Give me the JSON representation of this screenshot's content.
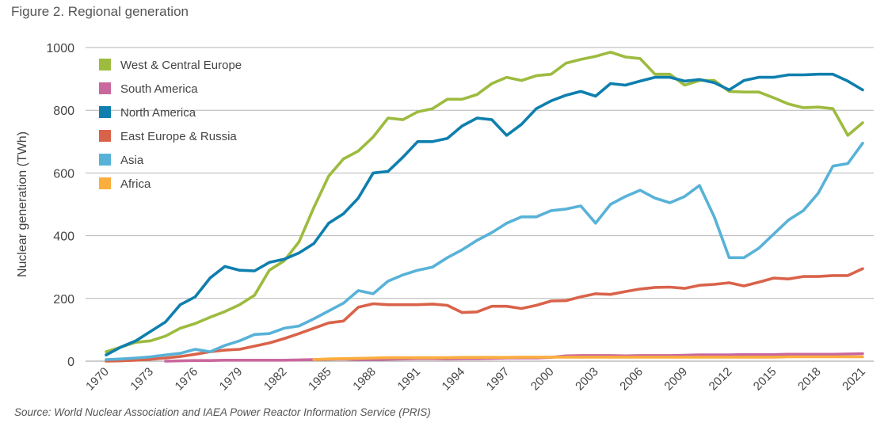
{
  "figure_title": "Figure 2. Regional generation",
  "source": "Source: World Nuclear Association and IAEA Power Reactor Information Service (PRIS)",
  "chart_data": {
    "type": "line",
    "title": "Figure 2. Regional generation",
    "xlabel": "",
    "ylabel": "Nuclear generation (TWh)",
    "xlim": [
      1970,
      2021
    ],
    "ylim": [
      0,
      1000
    ],
    "x_ticks": [
      "1970",
      "1973",
      "1976",
      "1979",
      "1982",
      "1985",
      "1988",
      "1991",
      "1994",
      "1997",
      "2000",
      "2003",
      "2006",
      "2009",
      "2012",
      "2015",
      "2018",
      "2021"
    ],
    "y_ticks": [
      "0",
      "200",
      "400",
      "600",
      "800",
      "1000"
    ],
    "grid": "horizontal",
    "legend_position": "top-left",
    "x": [
      1970,
      1971,
      1972,
      1973,
      1974,
      1975,
      1976,
      1977,
      1978,
      1979,
      1980,
      1981,
      1982,
      1983,
      1984,
      1985,
      1986,
      1987,
      1988,
      1989,
      1990,
      1991,
      1992,
      1993,
      1994,
      1995,
      1996,
      1997,
      1998,
      1999,
      2000,
      2001,
      2002,
      2003,
      2004,
      2005,
      2006,
      2007,
      2008,
      2009,
      2010,
      2011,
      2012,
      2013,
      2014,
      2015,
      2016,
      2017,
      2018,
      2019,
      2020,
      2021
    ],
    "series": [
      {
        "name": "West & Central Europe",
        "color": "#9dbb3f",
        "values": [
          30,
          45,
          60,
          65,
          80,
          105,
          120,
          140,
          158,
          180,
          210,
          290,
          320,
          380,
          490,
          590,
          645,
          670,
          715,
          775,
          770,
          795,
          805,
          835,
          835,
          850,
          885,
          905,
          895,
          910,
          915,
          950,
          962,
          972,
          985,
          970,
          965,
          915,
          915,
          880,
          895,
          895,
          860,
          858,
          858,
          840,
          820,
          808,
          810,
          805,
          720,
          760
        ]
      },
      {
        "name": "South America",
        "color": "#c9689d",
        "values": [
          null,
          null,
          null,
          null,
          0,
          1,
          2,
          2,
          3,
          3,
          3,
          3,
          3,
          4,
          5,
          6,
          7,
          5,
          5,
          6,
          7,
          8,
          8,
          7,
          8,
          8,
          9,
          10,
          10,
          10,
          12,
          17,
          18,
          18,
          18,
          17,
          18,
          18,
          18,
          19,
          20,
          20,
          20,
          21,
          21,
          21,
          22,
          22,
          22,
          22,
          23,
          24
        ]
      },
      {
        "name": "North America",
        "color": "#0e7fae",
        "values": [
          20,
          45,
          65,
          95,
          125,
          180,
          205,
          265,
          302,
          290,
          288,
          315,
          325,
          345,
          375,
          440,
          470,
          520,
          600,
          605,
          650,
          700,
          700,
          710,
          750,
          775,
          770,
          720,
          755,
          805,
          830,
          848,
          860,
          845,
          885,
          880,
          893,
          905,
          905,
          893,
          898,
          888,
          865,
          895,
          905,
          905,
          913,
          913,
          915,
          915,
          893,
          865
        ]
      },
      {
        "name": "East Europe & Russia",
        "color": "#d9634a",
        "values": [
          0,
          1,
          3,
          6,
          10,
          15,
          22,
          30,
          35,
          38,
          48,
          58,
          72,
          88,
          105,
          122,
          128,
          172,
          183,
          180,
          180,
          180,
          182,
          178,
          155,
          157,
          175,
          175,
          168,
          178,
          192,
          193,
          205,
          215,
          213,
          222,
          230,
          235,
          236,
          232,
          242,
          245,
          250,
          240,
          252,
          265,
          262,
          270,
          270,
          273,
          273,
          295
        ]
      },
      {
        "name": "Asia",
        "color": "#58b2d8",
        "values": [
          5,
          7,
          10,
          14,
          20,
          25,
          38,
          30,
          50,
          65,
          85,
          88,
          105,
          112,
          135,
          160,
          185,
          225,
          215,
          255,
          275,
          290,
          300,
          330,
          355,
          385,
          410,
          440,
          460,
          460,
          480,
          485,
          495,
          440,
          500,
          525,
          545,
          520,
          505,
          525,
          560,
          460,
          330,
          330,
          360,
          405,
          450,
          480,
          535,
          622,
          630,
          695
        ]
      },
      {
        "name": "Africa",
        "color": "#fbae3e",
        "values": [
          null,
          null,
          null,
          null,
          null,
          null,
          null,
          null,
          null,
          null,
          null,
          null,
          null,
          null,
          5,
          7,
          8,
          9,
          10,
          11,
          11,
          11,
          11,
          11,
          12,
          12,
          12,
          12,
          13,
          13,
          13,
          13,
          13,
          13,
          13,
          13,
          13,
          13,
          13,
          13,
          13,
          13,
          13,
          13,
          13,
          13,
          14,
          14,
          14,
          14,
          14,
          14
        ]
      }
    ]
  }
}
